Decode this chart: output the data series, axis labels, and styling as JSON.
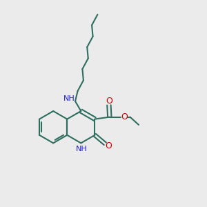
{
  "bg_color": "#ebebeb",
  "bond_color": "#2d6e5e",
  "n_color": "#2020cc",
  "o_color": "#cc0000",
  "lw": 1.5,
  "font_size": 8.0,
  "xlim": [
    0,
    10
  ],
  "ylim": [
    0,
    10
  ]
}
